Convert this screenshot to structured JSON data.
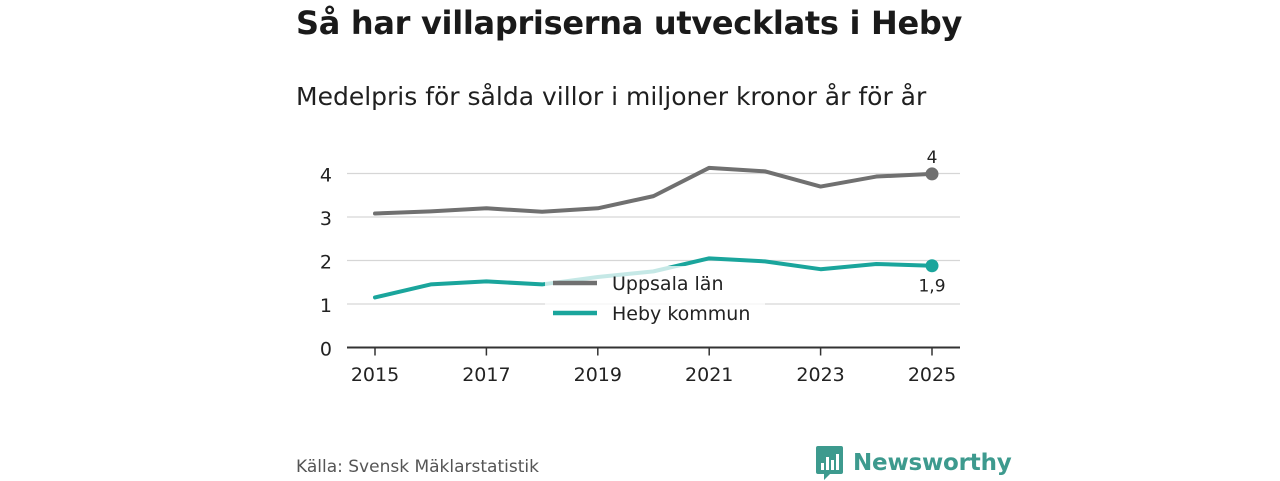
{
  "title": "Så har villapriserna utvecklats i Heby",
  "subtitle": "Medelpris för sålda villor i miljoner kronor år för år",
  "source": "Källa: Svensk Mäklarstatistik",
  "brand": {
    "name": "Newsworthy",
    "logo_icon": "bar-chart-logo-icon"
  },
  "chart_data": {
    "type": "line",
    "x": [
      2015,
      2016,
      2017,
      2018,
      2019,
      2020,
      2021,
      2022,
      2023,
      2024,
      2025
    ],
    "x_tick_labels": [
      "2015",
      "2017",
      "2019",
      "2021",
      "2023",
      "2025"
    ],
    "y_tick_labels": [
      "0",
      "1",
      "2",
      "3",
      "4"
    ],
    "ylim": [
      0,
      4.4
    ],
    "grid": true,
    "legend_position": "center",
    "series": [
      {
        "name": "Uppsala län",
        "color": "#707070",
        "values": [
          3.08,
          3.13,
          3.2,
          3.12,
          3.2,
          3.48,
          4.13,
          4.05,
          3.7,
          3.93,
          3.99
        ],
        "end_label": "4"
      },
      {
        "name": "Heby kommun",
        "color": "#1aa59c",
        "values": [
          1.15,
          1.45,
          1.52,
          1.45,
          1.62,
          1.75,
          2.05,
          1.98,
          1.8,
          1.92,
          1.88
        ],
        "end_label": "1,9"
      }
    ]
  }
}
